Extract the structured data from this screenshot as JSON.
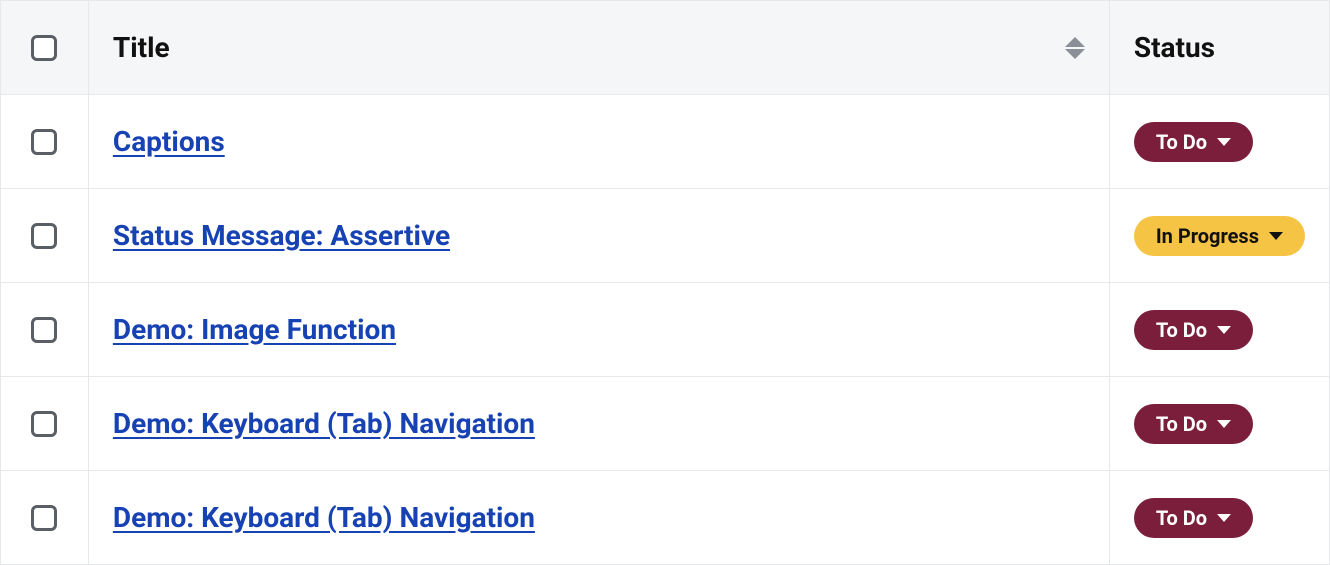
{
  "columns": {
    "title": "Title",
    "status": "Status"
  },
  "colors": {
    "link": "#1742b3",
    "header_bg": "#f5f6f7",
    "border": "#e6e8ea",
    "sort_icon": "#8a8f98",
    "checkbox_border": "#5a5f66"
  },
  "status_styles": {
    "todo": {
      "bg": "#7a1e3b",
      "fg": "#ffffff"
    },
    "in_progress": {
      "bg": "#f6c445",
      "fg": "#111111"
    }
  },
  "rows": [
    {
      "title": "Captions",
      "status_label": "To Do",
      "status_key": "todo"
    },
    {
      "title": "Status Message: Assertive",
      "status_label": "In Progress",
      "status_key": "in_progress"
    },
    {
      "title": "Demo: Image Function",
      "status_label": "To Do",
      "status_key": "todo"
    },
    {
      "title": "Demo: Keyboard (Tab) Navigation",
      "status_label": "To Do",
      "status_key": "todo"
    },
    {
      "title": "Demo: Keyboard (Tab) Navigation",
      "status_label": "To Do",
      "status_key": "todo"
    }
  ]
}
